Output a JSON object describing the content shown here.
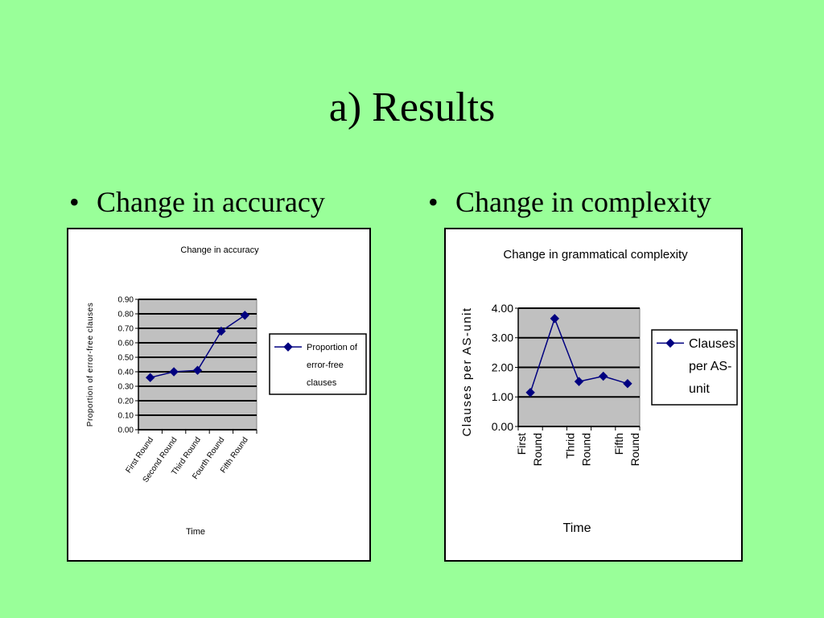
{
  "slide": {
    "title": "a) Results",
    "bullets": [
      "Change in accuracy",
      "Change in complexity"
    ],
    "bullet_marker": "•"
  },
  "colors": {
    "background": "#99ff99",
    "plot_area": "#c0c0c0",
    "series": "#000080"
  },
  "chart_data": [
    {
      "type": "line",
      "title": "Change in accuracy",
      "xlabel": "Time",
      "ylabel": "Proportion of error-free clauses",
      "categories": [
        "First Round",
        "Second Round",
        "Third Round",
        "Fourth Round",
        "Fifth Round"
      ],
      "series": [
        {
          "name": "Proportion of error-free clauses",
          "values": [
            0.36,
            0.4,
            0.41,
            0.68,
            0.79
          ]
        }
      ],
      "legend_lines": [
        "Proportion of",
        "error-free",
        "clauses"
      ],
      "ylim": [
        0,
        0.9
      ],
      "yticks": [
        "0.00",
        "0.10",
        "0.20",
        "0.30",
        "0.40",
        "0.50",
        "0.60",
        "0.70",
        "0.80",
        "0.90"
      ],
      "grid": true,
      "legend": "right"
    },
    {
      "type": "line",
      "title": "Change in grammatical complexity",
      "xlabel": "Time",
      "ylabel": "Clauses per AS-unit",
      "categories": [
        "First Round",
        "",
        "Thrid Round",
        "",
        "Fifth Round"
      ],
      "series": [
        {
          "name": "Clauses per AS-unit",
          "values": [
            1.15,
            3.65,
            1.52,
            1.7,
            1.45
          ]
        }
      ],
      "legend_lines": [
        "Clauses",
        "per AS-",
        "unit"
      ],
      "ylim": [
        0,
        4
      ],
      "yticks": [
        "0.00",
        "1.00",
        "2.00",
        "3.00",
        "4.00"
      ],
      "grid": true,
      "legend": "right"
    }
  ]
}
